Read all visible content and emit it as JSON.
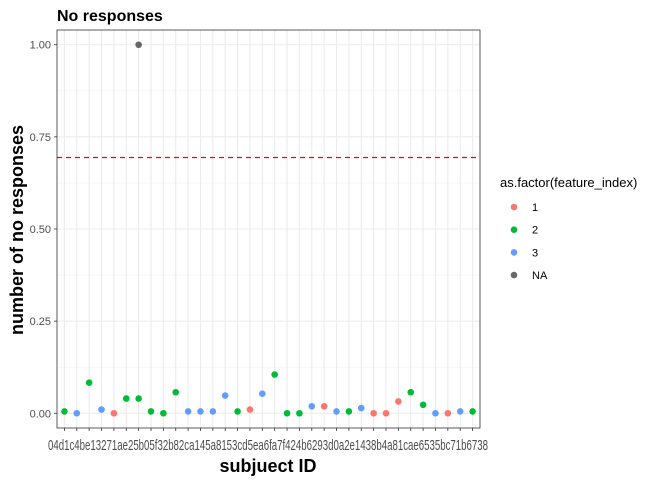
{
  "chart_data": {
    "type": "scatter",
    "title": "No responses",
    "xlabel": "subjuect ID",
    "ylabel": "number of no responses",
    "ylim": [
      -0.04,
      1.04
    ],
    "y_ticks": [
      0.0,
      0.25,
      0.5,
      0.75,
      1.0
    ],
    "y_tick_labels": [
      "0.00",
      "0.25",
      "0.50",
      "0.75",
      "1.00"
    ],
    "x_tick_labels_text": "04d1c4be13271ae25b05f32b82ca145a8153cd5ea6fa7f424b6293d0a2e1438b4a81cae6535bc71b6738",
    "reference_line": {
      "y": 0.694,
      "color": "#ff0000",
      "style": "dashed"
    },
    "grid": true,
    "legend": {
      "title": "as.factor(feature_index)",
      "position": "right",
      "entries": [
        {
          "label": "1",
          "color": "#F8766D"
        },
        {
          "label": "2",
          "color": "#00BA38"
        },
        {
          "label": "3",
          "color": "#619CFF"
        },
        {
          "label": "NA",
          "color": "#666666"
        }
      ]
    },
    "points": [
      {
        "x": 1,
        "y": 0.005,
        "group": "2"
      },
      {
        "x": 2,
        "y": 0.0,
        "group": "3"
      },
      {
        "x": 3,
        "y": 0.083,
        "group": "2"
      },
      {
        "x": 4,
        "y": 0.01,
        "group": "3"
      },
      {
        "x": 5,
        "y": 0.0,
        "group": "1"
      },
      {
        "x": 6,
        "y": 0.04,
        "group": "2"
      },
      {
        "x": 7,
        "y": 0.04,
        "group": "2"
      },
      {
        "x": 7,
        "y": 1.0,
        "group": "NA"
      },
      {
        "x": 8,
        "y": 0.005,
        "group": "2"
      },
      {
        "x": 9,
        "y": 0.0,
        "group": "2"
      },
      {
        "x": 10,
        "y": 0.057,
        "group": "2"
      },
      {
        "x": 11,
        "y": 0.005,
        "group": "3"
      },
      {
        "x": 12,
        "y": 0.005,
        "group": "3"
      },
      {
        "x": 13,
        "y": 0.005,
        "group": "3"
      },
      {
        "x": 14,
        "y": 0.048,
        "group": "3"
      },
      {
        "x": 15,
        "y": 0.005,
        "group": "2"
      },
      {
        "x": 16,
        "y": 0.01,
        "group": "1"
      },
      {
        "x": 17,
        "y": 0.053,
        "group": "3"
      },
      {
        "x": 18,
        "y": 0.105,
        "group": "2"
      },
      {
        "x": 19,
        "y": 0.0,
        "group": "2"
      },
      {
        "x": 20,
        "y": 0.0,
        "group": "2"
      },
      {
        "x": 21,
        "y": 0.019,
        "group": "3"
      },
      {
        "x": 22,
        "y": 0.019,
        "group": "1"
      },
      {
        "x": 23,
        "y": 0.005,
        "group": "3"
      },
      {
        "x": 24,
        "y": 0.005,
        "group": "2"
      },
      {
        "x": 25,
        "y": 0.014,
        "group": "3"
      },
      {
        "x": 26,
        "y": 0.0,
        "group": "1"
      },
      {
        "x": 27,
        "y": 0.0,
        "group": "1"
      },
      {
        "x": 28,
        "y": 0.032,
        "group": "1"
      },
      {
        "x": 29,
        "y": 0.057,
        "group": "2"
      },
      {
        "x": 30,
        "y": 0.023,
        "group": "2"
      },
      {
        "x": 31,
        "y": 0.0,
        "group": "3"
      },
      {
        "x": 32,
        "y": 0.0,
        "group": "1"
      },
      {
        "x": 33,
        "y": 0.005,
        "group": "3"
      },
      {
        "x": 34,
        "y": 0.005,
        "group": "2"
      }
    ]
  }
}
